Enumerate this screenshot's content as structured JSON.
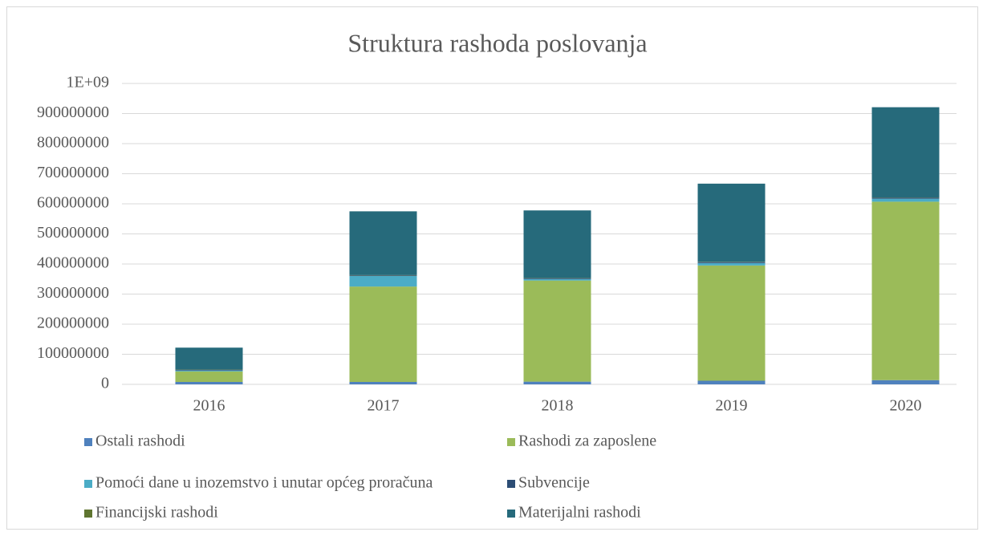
{
  "chart_data": {
    "type": "stacked_bar",
    "title": "Struktura rashoda poslovanja",
    "categories": [
      "2016",
      "2017",
      "2018",
      "2019",
      "2020"
    ],
    "series": [
      {
        "name": "Ostali rashodi",
        "color": "#4f81bd",
        "values": [
          8000000,
          8000000,
          9000000,
          12000000,
          14000000
        ]
      },
      {
        "name": "Rashodi za zaposlene",
        "color": "#9bbb59",
        "values": [
          35000000,
          317000000,
          336000000,
          383000000,
          593000000
        ]
      },
      {
        "name": "Pomoći dane u inozemstvo i unutar općeg proračuna",
        "color": "#4bacc6",
        "values": [
          3000000,
          35000000,
          5000000,
          8000000,
          10000000
        ]
      },
      {
        "name": "Subvencije",
        "color": "#2c4d75",
        "values": [
          2000000,
          2000000,
          2000000,
          3000000,
          3000000
        ]
      },
      {
        "name": "Financijski rashodi",
        "color": "#5f7530",
        "values": [
          1000000,
          1000000,
          1000000,
          1000000,
          1000000
        ]
      },
      {
        "name": "Materijalni rashodi",
        "color": "#266a7b",
        "values": [
          73000000,
          212000000,
          225000000,
          260000000,
          300000000
        ]
      }
    ],
    "ylim": [
      0,
      1000000000
    ],
    "yticks": [
      0,
      100000000,
      200000000,
      300000000,
      400000000,
      500000000,
      600000000,
      700000000,
      800000000,
      900000000,
      {
        "value": 1000000000,
        "label": "1E+09"
      }
    ],
    "grid": true
  }
}
